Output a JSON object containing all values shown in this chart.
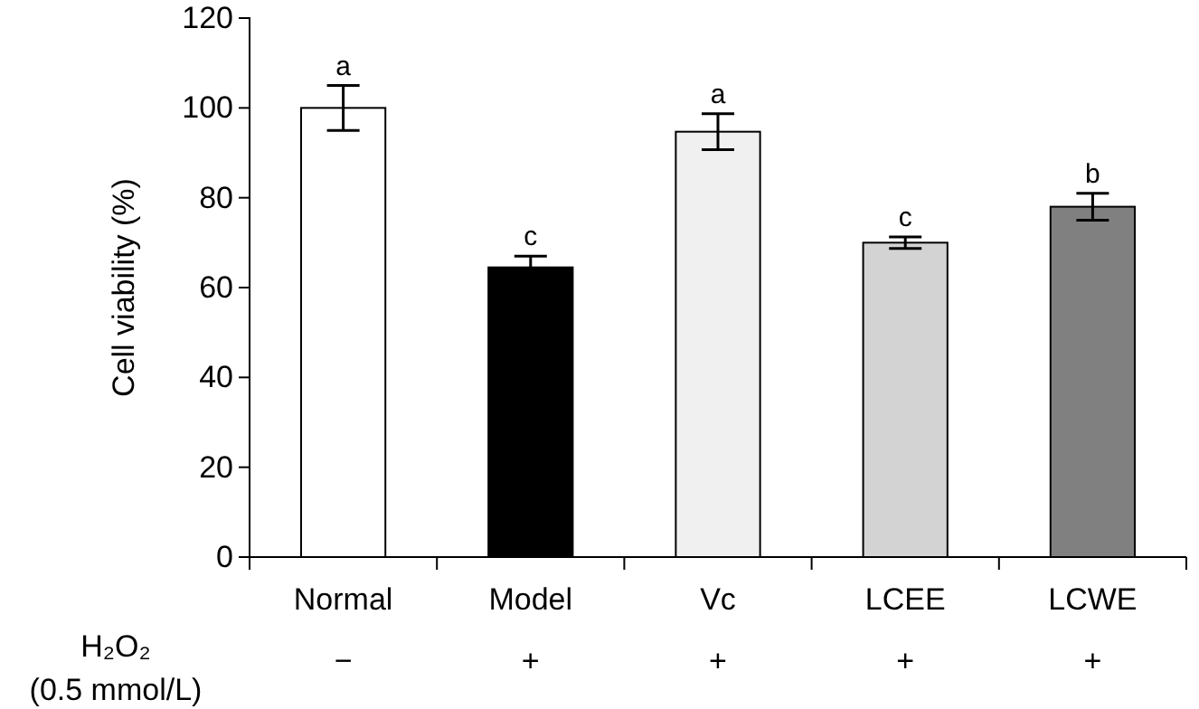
{
  "chart_data": {
    "type": "bar",
    "ylabel": "Cell viability (%)",
    "categories": [
      "Normal",
      "Model",
      "Vc",
      "LCEE",
      "LCWE"
    ],
    "values": [
      100,
      64.5,
      94.7,
      70,
      78
    ],
    "errors": [
      5,
      2.5,
      4,
      1.3,
      3
    ],
    "colors": [
      "#ffffff",
      "#000000",
      "#f0f0f0",
      "#d3d3d3",
      "#808080"
    ],
    "ylim": [
      0,
      120
    ],
    "yticks": [
      0,
      20,
      40,
      60,
      80,
      100,
      120
    ],
    "grid": false,
    "annotations": [
      {
        "text": "a",
        "x": "Normal",
        "y": 105
      },
      {
        "text": "c",
        "x": "Model",
        "y": 67
      },
      {
        "text": "a",
        "x": "Vc",
        "y": 98.7
      },
      {
        "text": "c",
        "x": "LCEE",
        "y": 71.3
      },
      {
        "text": "b",
        "x": "LCWE",
        "y": 81
      },
      "H₂O₂ (0.5 mmol/L)",
      "−",
      "+",
      "+",
      "+",
      "+"
    ]
  }
}
